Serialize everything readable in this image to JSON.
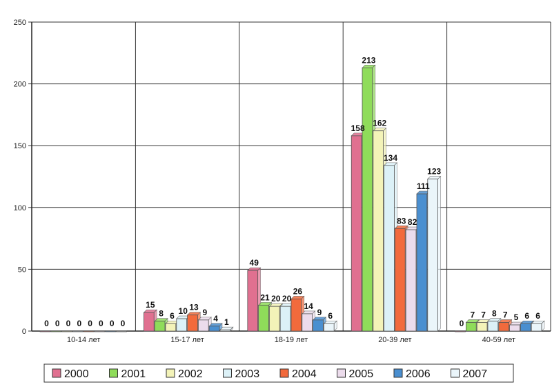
{
  "chart_data": {
    "type": "bar",
    "categories": [
      "10-14 лет",
      "15-17 лет",
      "18-19 лет",
      "20-39 лет",
      "40-59 лет"
    ],
    "series": [
      {
        "name": "2000",
        "color": "#e07090",
        "values": [
          0,
          15,
          49,
          158,
          0
        ]
      },
      {
        "name": "2001",
        "color": "#8fdc5a",
        "values": [
          0,
          8,
          21,
          213,
          7
        ]
      },
      {
        "name": "2002",
        "color": "#f3f3b8",
        "values": [
          0,
          6,
          20,
          162,
          7
        ]
      },
      {
        "name": "2003",
        "color": "#dcf1f7",
        "values": [
          0,
          10,
          20,
          134,
          8
        ]
      },
      {
        "name": "2004",
        "color": "#f26a3c",
        "values": [
          0,
          13,
          26,
          83,
          7
        ]
      },
      {
        "name": "2005",
        "color": "#ecdcec",
        "values": [
          0,
          9,
          14,
          82,
          5
        ]
      },
      {
        "name": "2006",
        "color": "#4a8fd0",
        "values": [
          0,
          4,
          9,
          111,
          6
        ]
      },
      {
        "name": "2007",
        "color": "#eaf5fa",
        "values": [
          0,
          1,
          6,
          123,
          6
        ]
      }
    ],
    "data_labels": [
      [
        "0",
        "15",
        "49",
        "158",
        "0"
      ],
      [
        "0",
        "8",
        "21",
        "213",
        "7"
      ],
      [
        "0",
        "6",
        "20",
        "162",
        "7"
      ],
      [
        "0",
        "10",
        "20",
        "134",
        "8"
      ],
      [
        "0",
        "13",
        "26",
        "83",
        "7"
      ],
      [
        "0",
        "9",
        "14",
        "82",
        "5"
      ],
      [
        "0",
        "4",
        "9",
        "111",
        "6"
      ],
      [
        "0",
        "1",
        "6",
        "123",
        "6"
      ]
    ],
    "y_ticks": [
      "0",
      "50",
      "100",
      "150",
      "200",
      "250"
    ],
    "ylim": [
      0,
      250
    ],
    "grid": true,
    "legend": "bottom",
    "title": "",
    "xlabel": "",
    "ylabel": ""
  }
}
